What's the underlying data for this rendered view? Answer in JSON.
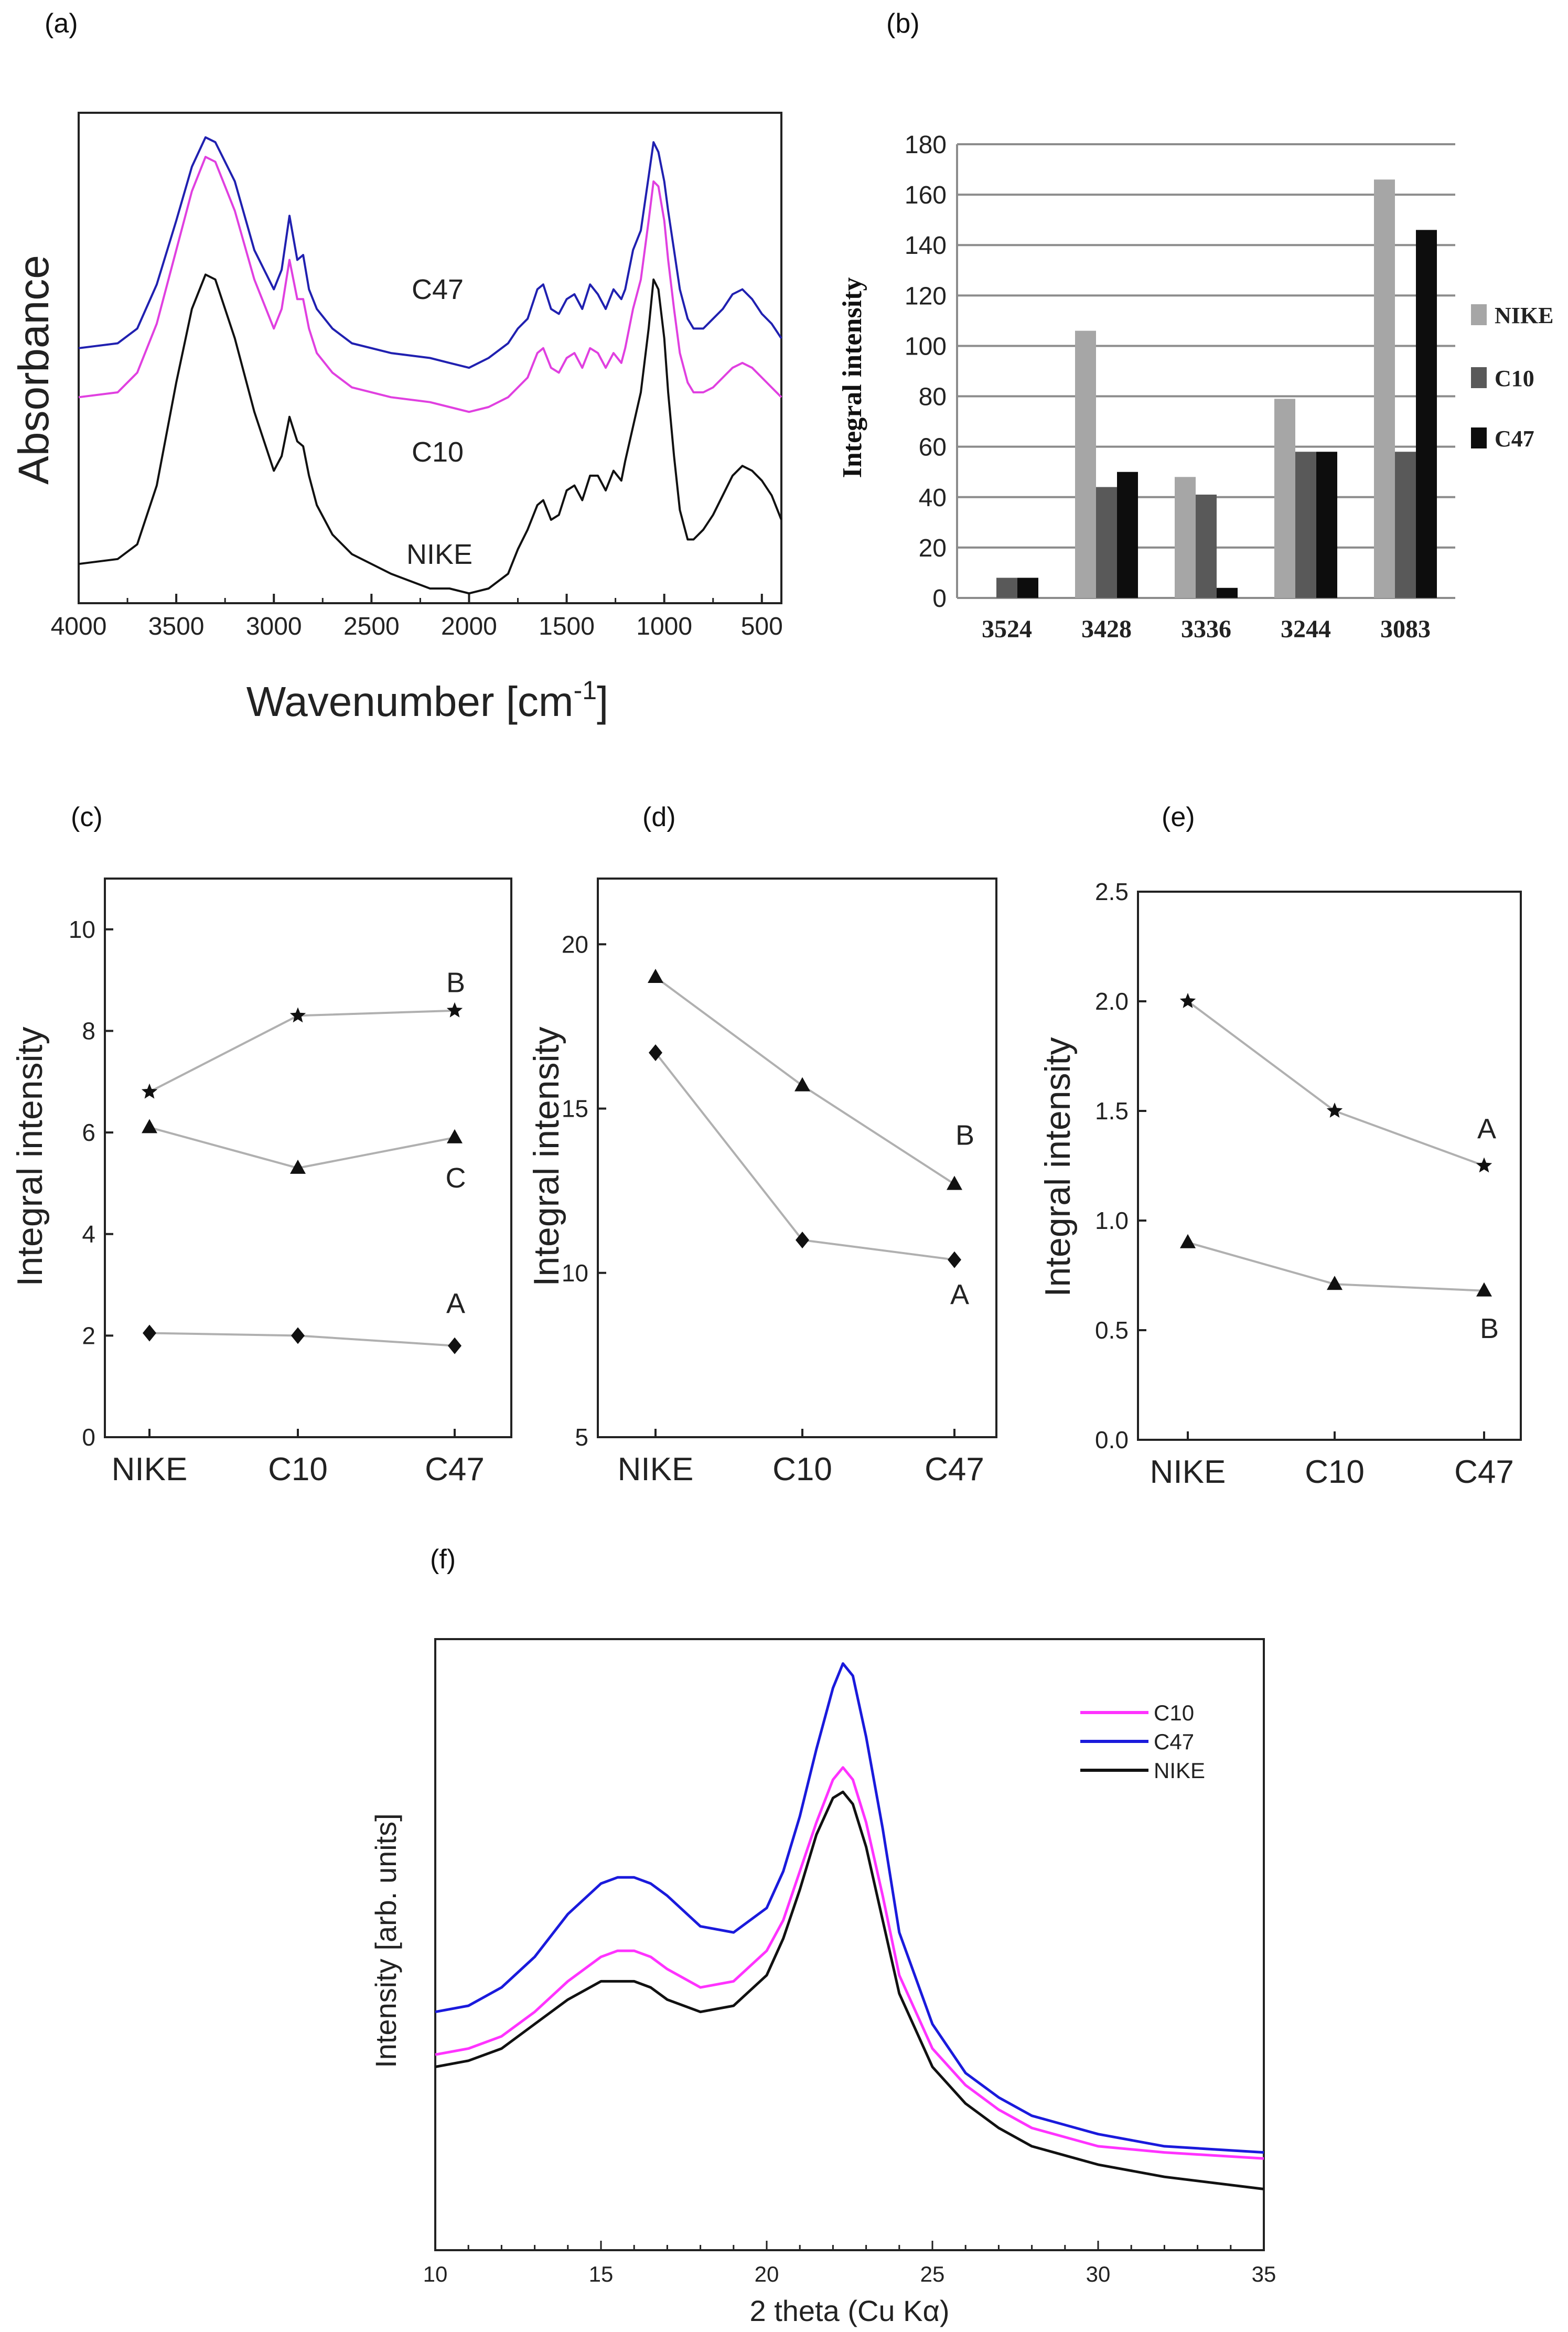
{
  "panel_labels": [
    "(a)",
    "(b)",
    "(c)",
    "(d)",
    "(e)",
    "(f)"
  ],
  "chart_data": [
    {
      "id": "a",
      "type": "line",
      "title": "",
      "xlabel": "Wavenumber [cm",
      "xlabel_sup": "-1",
      "xlabel_close": "]",
      "ylabel": "Absorbance",
      "xlim": [
        4000,
        400
      ],
      "ylim": [
        0,
        1
      ],
      "x_ticks": [
        4000,
        3500,
        3000,
        2500,
        2000,
        1500,
        1000,
        500
      ],
      "x_tick_labels": [
        "4000",
        "3500",
        "3000",
        "2500",
        "2000",
        "1500",
        "1000",
        "500"
      ],
      "y_ticks_shown": false,
      "annotations": [
        "C47",
        "C10",
        "NIKE"
      ],
      "series": [
        {
          "name": "C47",
          "color": "#2020b0",
          "x": [
            4000,
            3800,
            3700,
            3600,
            3500,
            3420,
            3350,
            3300,
            3200,
            3100,
            3000,
            2960,
            2920,
            2880,
            2850,
            2820,
            2780,
            2700,
            2600,
            2400,
            2200,
            2100,
            2000,
            1900,
            1800,
            1750,
            1700,
            1650,
            1620,
            1580,
            1540,
            1500,
            1460,
            1420,
            1380,
            1340,
            1300,
            1260,
            1220,
            1200,
            1160,
            1120,
            1080,
            1055,
            1030,
            1000,
            980,
            950,
            920,
            880,
            850,
            800,
            750,
            700,
            650,
            600,
            550,
            500,
            450,
            400
          ],
          "y": [
            0.52,
            0.53,
            0.56,
            0.65,
            0.78,
            0.89,
            0.95,
            0.94,
            0.86,
            0.72,
            0.64,
            0.68,
            0.79,
            0.7,
            0.71,
            0.64,
            0.6,
            0.56,
            0.53,
            0.51,
            0.5,
            0.49,
            0.48,
            0.5,
            0.53,
            0.56,
            0.58,
            0.64,
            0.65,
            0.6,
            0.59,
            0.62,
            0.63,
            0.6,
            0.65,
            0.63,
            0.6,
            0.64,
            0.62,
            0.64,
            0.72,
            0.76,
            0.87,
            0.94,
            0.92,
            0.86,
            0.8,
            0.72,
            0.64,
            0.58,
            0.56,
            0.56,
            0.58,
            0.6,
            0.63,
            0.64,
            0.62,
            0.59,
            0.57,
            0.54
          ]
        },
        {
          "name": "C10",
          "color": "#e040e0",
          "x": [
            4000,
            3800,
            3700,
            3600,
            3500,
            3420,
            3350,
            3300,
            3200,
            3100,
            3000,
            2960,
            2920,
            2880,
            2850,
            2820,
            2780,
            2700,
            2600,
            2400,
            2200,
            2100,
            2000,
            1900,
            1800,
            1750,
            1700,
            1650,
            1620,
            1580,
            1540,
            1500,
            1460,
            1420,
            1380,
            1340,
            1300,
            1260,
            1220,
            1200,
            1160,
            1120,
            1080,
            1055,
            1030,
            1000,
            980,
            950,
            920,
            880,
            850,
            800,
            750,
            700,
            650,
            600,
            550,
            500,
            450,
            400
          ],
          "y": [
            0.42,
            0.43,
            0.47,
            0.57,
            0.72,
            0.84,
            0.91,
            0.9,
            0.8,
            0.66,
            0.56,
            0.6,
            0.7,
            0.62,
            0.62,
            0.56,
            0.51,
            0.47,
            0.44,
            0.42,
            0.41,
            0.4,
            0.39,
            0.4,
            0.42,
            0.44,
            0.46,
            0.51,
            0.52,
            0.48,
            0.47,
            0.5,
            0.51,
            0.48,
            0.52,
            0.51,
            0.48,
            0.51,
            0.49,
            0.52,
            0.6,
            0.66,
            0.78,
            0.86,
            0.85,
            0.78,
            0.7,
            0.6,
            0.51,
            0.45,
            0.43,
            0.43,
            0.44,
            0.46,
            0.48,
            0.49,
            0.48,
            0.46,
            0.44,
            0.42
          ]
        },
        {
          "name": "NIKE",
          "color": "#111111",
          "x": [
            4000,
            3800,
            3700,
            3600,
            3500,
            3420,
            3350,
            3300,
            3200,
            3100,
            3000,
            2960,
            2920,
            2880,
            2850,
            2820,
            2780,
            2700,
            2600,
            2400,
            2200,
            2100,
            2000,
            1900,
            1800,
            1750,
            1700,
            1650,
            1620,
            1580,
            1540,
            1500,
            1460,
            1420,
            1380,
            1340,
            1300,
            1260,
            1220,
            1200,
            1160,
            1120,
            1080,
            1055,
            1030,
            1000,
            980,
            950,
            920,
            880,
            850,
            800,
            750,
            700,
            650,
            600,
            550,
            500,
            450,
            400
          ],
          "y": [
            0.08,
            0.09,
            0.12,
            0.24,
            0.45,
            0.6,
            0.67,
            0.66,
            0.54,
            0.39,
            0.27,
            0.3,
            0.38,
            0.33,
            0.32,
            0.26,
            0.2,
            0.14,
            0.1,
            0.06,
            0.03,
            0.03,
            0.02,
            0.03,
            0.06,
            0.11,
            0.15,
            0.2,
            0.21,
            0.17,
            0.18,
            0.23,
            0.24,
            0.21,
            0.26,
            0.26,
            0.23,
            0.27,
            0.25,
            0.29,
            0.36,
            0.43,
            0.56,
            0.66,
            0.64,
            0.54,
            0.43,
            0.3,
            0.19,
            0.13,
            0.13,
            0.15,
            0.18,
            0.22,
            0.26,
            0.28,
            0.27,
            0.25,
            0.22,
            0.17
          ]
        }
      ]
    },
    {
      "id": "b",
      "type": "bar",
      "title": "",
      "xlabel": "",
      "ylabel": "Integral intensity",
      "ylim": [
        0,
        180
      ],
      "y_ticks": [
        0,
        20,
        40,
        60,
        80,
        100,
        120,
        140,
        160,
        180
      ],
      "y_tick_labels": [
        "0",
        "20",
        "40",
        "60",
        "80",
        "100",
        "120",
        "140",
        "160",
        "180"
      ],
      "grid": true,
      "legend_position": "right",
      "categories": [
        "3524",
        "3428",
        "3336",
        "3244",
        "3083"
      ],
      "series": [
        {
          "name": "NIKE",
          "color": "#a6a6a6",
          "values": [
            0,
            106,
            48,
            79,
            166
          ]
        },
        {
          "name": "C10",
          "color": "#595959",
          "values": [
            8,
            44,
            41,
            58,
            58
          ]
        },
        {
          "name": "C47",
          "color": "#0d0d0d",
          "values": [
            8,
            50,
            4,
            58,
            146
          ]
        }
      ]
    },
    {
      "id": "c",
      "type": "line",
      "title": "",
      "xlabel": "",
      "ylabel": "Integral intensity",
      "ylim": [
        0,
        11
      ],
      "y_ticks": [
        0,
        2,
        4,
        6,
        8,
        10
      ],
      "y_tick_labels": [
        "0",
        "2",
        "4",
        "6",
        "8",
        "10"
      ],
      "categories": [
        "NIKE",
        "C10",
        "C47"
      ],
      "series": [
        {
          "name": "B",
          "marker": "star",
          "values": [
            6.8,
            8.3,
            8.4
          ]
        },
        {
          "name": "C",
          "marker": "triangle",
          "values": [
            6.1,
            5.3,
            5.9
          ]
        },
        {
          "name": "A",
          "marker": "diamond",
          "values": [
            2.05,
            2.0,
            1.8
          ]
        }
      ]
    },
    {
      "id": "d",
      "type": "line",
      "title": "",
      "xlabel": "",
      "ylabel": "Integral intensity",
      "ylim": [
        5,
        22
      ],
      "y_ticks": [
        5,
        10,
        15,
        20
      ],
      "y_tick_labels": [
        "5",
        "10",
        "15",
        "20"
      ],
      "categories": [
        "NIKE",
        "C10",
        "C47"
      ],
      "series": [
        {
          "name": "B",
          "marker": "triangle",
          "values": [
            19.0,
            15.7,
            12.7
          ]
        },
        {
          "name": "A",
          "marker": "diamond",
          "values": [
            16.7,
            11.0,
            10.4
          ]
        }
      ]
    },
    {
      "id": "e",
      "type": "line",
      "title": "",
      "xlabel": "",
      "ylabel": "Integral intensity",
      "ylim": [
        0,
        2.5
      ],
      "y_ticks": [
        0.0,
        0.5,
        1.0,
        1.5,
        2.0,
        2.5
      ],
      "y_tick_labels": [
        "0.0",
        "0.5",
        "1.0",
        "1.5",
        "2.0",
        "2.5"
      ],
      "categories": [
        "NIKE",
        "C10",
        "C47"
      ],
      "series": [
        {
          "name": "A",
          "marker": "star",
          "values": [
            2.0,
            1.5,
            1.25
          ]
        },
        {
          "name": "B",
          "marker": "triangle",
          "values": [
            0.9,
            0.71,
            0.68
          ]
        }
      ]
    },
    {
      "id": "f",
      "type": "line",
      "title": "",
      "xlabel": "2 theta (Cu Kα)",
      "ylabel": "Intensity [arb. units]",
      "xlim": [
        10,
        35
      ],
      "ylim": [
        0,
        1
      ],
      "x_ticks": [
        10,
        15,
        20,
        25,
        30,
        35
      ],
      "x_tick_labels": [
        "10",
        "15",
        "20",
        "25",
        "30",
        "35"
      ],
      "y_ticks_shown": false,
      "legend_position": "top-right",
      "series": [
        {
          "name": "C10",
          "color": "#ff33ff",
          "x": [
            10,
            11,
            12,
            13,
            14,
            15,
            15.5,
            16,
            16.5,
            17,
            18,
            19,
            20,
            20.5,
            21,
            21.5,
            22,
            22.3,
            22.6,
            23,
            23.5,
            24,
            25,
            26,
            27,
            28,
            30,
            32,
            35
          ],
          "y": [
            0.32,
            0.33,
            0.35,
            0.39,
            0.44,
            0.48,
            0.49,
            0.49,
            0.48,
            0.46,
            0.43,
            0.44,
            0.49,
            0.54,
            0.62,
            0.7,
            0.77,
            0.79,
            0.77,
            0.7,
            0.58,
            0.45,
            0.33,
            0.27,
            0.23,
            0.2,
            0.17,
            0.16,
            0.15
          ]
        },
        {
          "name": "C47",
          "color": "#1a1adc",
          "x": [
            10,
            11,
            12,
            13,
            14,
            15,
            15.5,
            16,
            16.5,
            17,
            18,
            19,
            20,
            20.5,
            21,
            21.5,
            22,
            22.3,
            22.6,
            23,
            23.5,
            24,
            25,
            26,
            27,
            28,
            30,
            32,
            35
          ],
          "y": [
            0.39,
            0.4,
            0.43,
            0.48,
            0.55,
            0.6,
            0.61,
            0.61,
            0.6,
            0.58,
            0.53,
            0.52,
            0.56,
            0.62,
            0.71,
            0.82,
            0.92,
            0.96,
            0.94,
            0.84,
            0.69,
            0.52,
            0.37,
            0.29,
            0.25,
            0.22,
            0.19,
            0.17,
            0.16
          ]
        },
        {
          "name": "NIKE",
          "color": "#111111",
          "x": [
            10,
            11,
            12,
            13,
            14,
            15,
            15.5,
            16,
            16.5,
            17,
            18,
            19,
            20,
            20.5,
            21,
            21.5,
            22,
            22.3,
            22.6,
            23,
            23.5,
            24,
            25,
            26,
            27,
            28,
            30,
            32,
            35
          ],
          "y": [
            0.3,
            0.31,
            0.33,
            0.37,
            0.41,
            0.44,
            0.44,
            0.44,
            0.43,
            0.41,
            0.39,
            0.4,
            0.45,
            0.51,
            0.59,
            0.68,
            0.74,
            0.75,
            0.73,
            0.66,
            0.54,
            0.42,
            0.3,
            0.24,
            0.2,
            0.17,
            0.14,
            0.12,
            0.1
          ]
        }
      ]
    }
  ]
}
